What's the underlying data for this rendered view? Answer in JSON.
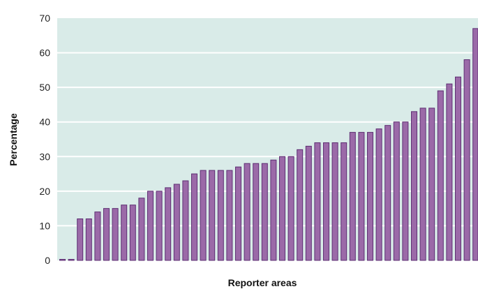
{
  "chart_data": {
    "type": "bar",
    "xlabel": "Reporter areas",
    "ylabel": "Percentage",
    "ylim": [
      0,
      70
    ],
    "yticks": [
      0,
      10,
      20,
      30,
      40,
      50,
      60,
      70
    ],
    "grid": true,
    "legend": "none",
    "colors": {
      "plot_background": "#d9ebe8",
      "gridline": "#ffffff",
      "bar_fill": "#9b6aa8",
      "bar_stroke": "#5e2f73"
    },
    "values": [
      0,
      0,
      12,
      12,
      14,
      15,
      15,
      16,
      16,
      18,
      20,
      20,
      21,
      22,
      23,
      25,
      26,
      26,
      26,
      26,
      27,
      28,
      28,
      28,
      29,
      30,
      30,
      32,
      33,
      34,
      34,
      34,
      34,
      37,
      37,
      37,
      38,
      39,
      40,
      40,
      43,
      44,
      44,
      49,
      51,
      53,
      58,
      67
    ]
  }
}
